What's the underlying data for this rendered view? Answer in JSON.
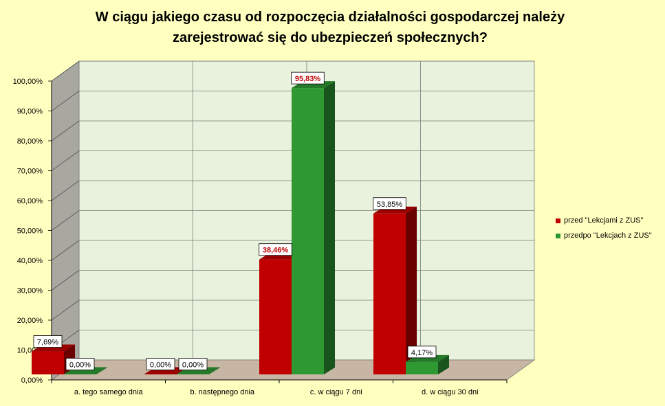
{
  "title_line1": "W ciągu jakiego czasu od rozpoczęcia działalności gospodarczej należy",
  "title_line2": "zarejestrować się do ubezpieczeń społecznych?",
  "colors": {
    "background": "#ffffc0",
    "plot_back": "#e9f2dc",
    "grid": "#7a7a7a",
    "wall_side": "#a8a8a0",
    "floor": "#c8b6a4",
    "series_red": "#c00000",
    "series_green": "#2e9933",
    "label_red_text": "#c00000"
  },
  "chart_data": {
    "type": "bar",
    "title": "W ciągu jakiego czasu od rozpoczęcia działalności gospodarczej należy zarejestrować się do ubezpieczeń społecznych?",
    "categories": [
      "a. tego samego dnia",
      "b. następnego dnia",
      "c. w ciągu 7 dni",
      "d. w ciągu 30 dni"
    ],
    "series": [
      {
        "name": "przed \"Lekcjami z ZUS\"",
        "color": "#c00000",
        "values": [
          7.69,
          0.0,
          38.46,
          53.85
        ],
        "labels": [
          "7,69%",
          "0,00%",
          "38,46%",
          "53,85%"
        ],
        "label_highlight": [
          false,
          false,
          true,
          false
        ]
      },
      {
        "name": "przedpo \"Lekcjach z ZUS\"",
        "color": "#2e9933",
        "values": [
          0.0,
          0.0,
          95.83,
          4.17
        ],
        "labels": [
          "0,00%",
          "0,00%",
          "95,83%",
          "4,17%"
        ],
        "label_highlight": [
          false,
          false,
          true,
          false
        ]
      }
    ],
    "yticks": [
      "0,00%",
      "10,00%",
      "20,00%",
      "30,00%",
      "40,00%",
      "50,00%",
      "60,00%",
      "70,00%",
      "80,00%",
      "90,00%",
      "100,00%"
    ],
    "ylim": [
      0,
      100
    ],
    "grid": true,
    "legend_position": "right",
    "style": "3d-clustered-column"
  }
}
